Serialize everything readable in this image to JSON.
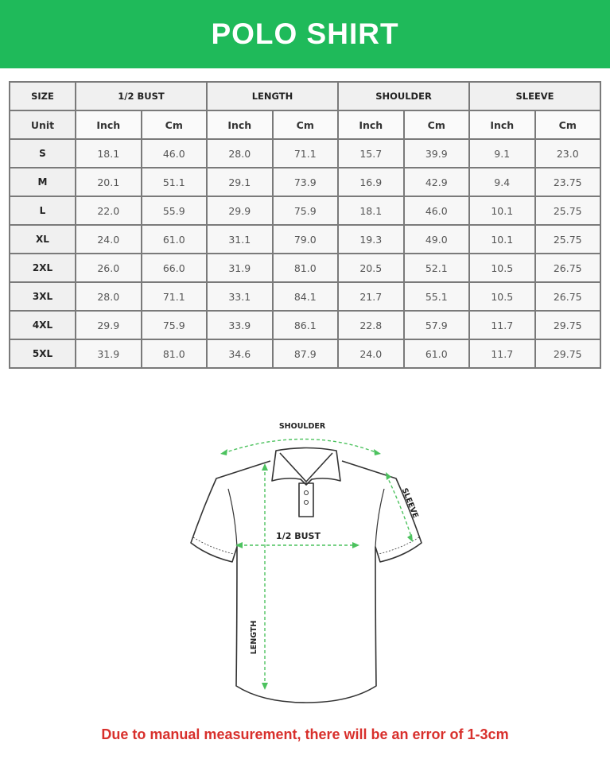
{
  "title": "POLO SHIRT",
  "table": {
    "size_header": "SIZE",
    "groups": [
      "1/2 BUST",
      "LENGTH",
      "SHOULDER",
      "SLEEVE"
    ],
    "unit_label": "Unit",
    "units": [
      "Inch",
      "Cm"
    ],
    "rows": [
      {
        "size": "S",
        "values": [
          "18.1",
          "46.0",
          "28.0",
          "71.1",
          "15.7",
          "39.9",
          "9.1",
          "23.0"
        ]
      },
      {
        "size": "M",
        "values": [
          "20.1",
          "51.1",
          "29.1",
          "73.9",
          "16.9",
          "42.9",
          "9.4",
          "23.75"
        ]
      },
      {
        "size": "L",
        "values": [
          "22.0",
          "55.9",
          "29.9",
          "75.9",
          "18.1",
          "46.0",
          "10.1",
          "25.75"
        ]
      },
      {
        "size": "XL",
        "values": [
          "24.0",
          "61.0",
          "31.1",
          "79.0",
          "19.3",
          "49.0",
          "10.1",
          "25.75"
        ]
      },
      {
        "size": "2XL",
        "values": [
          "26.0",
          "66.0",
          "31.9",
          "81.0",
          "20.5",
          "52.1",
          "10.5",
          "26.75"
        ]
      },
      {
        "size": "3XL",
        "values": [
          "28.0",
          "71.1",
          "33.1",
          "84.1",
          "21.7",
          "55.1",
          "10.5",
          "26.75"
        ]
      },
      {
        "size": "4XL",
        "values": [
          "29.9",
          "75.9",
          "33.9",
          "86.1",
          "22.8",
          "57.9",
          "11.7",
          "29.75"
        ]
      },
      {
        "size": "5XL",
        "values": [
          "31.9",
          "81.0",
          "34.6",
          "87.9",
          "24.0",
          "61.0",
          "11.7",
          "29.75"
        ]
      }
    ]
  },
  "diagram": {
    "shoulder": "SHOULDER",
    "sleeve": "SLEEVE",
    "bust": "1/2 BUST",
    "length": "LENGTH"
  },
  "colors": {
    "banner": "#1fba5a",
    "arrow": "#4cc25e",
    "note": "#d8302c"
  },
  "note": "Due to manual measurement, there will be an error of 1-3cm"
}
